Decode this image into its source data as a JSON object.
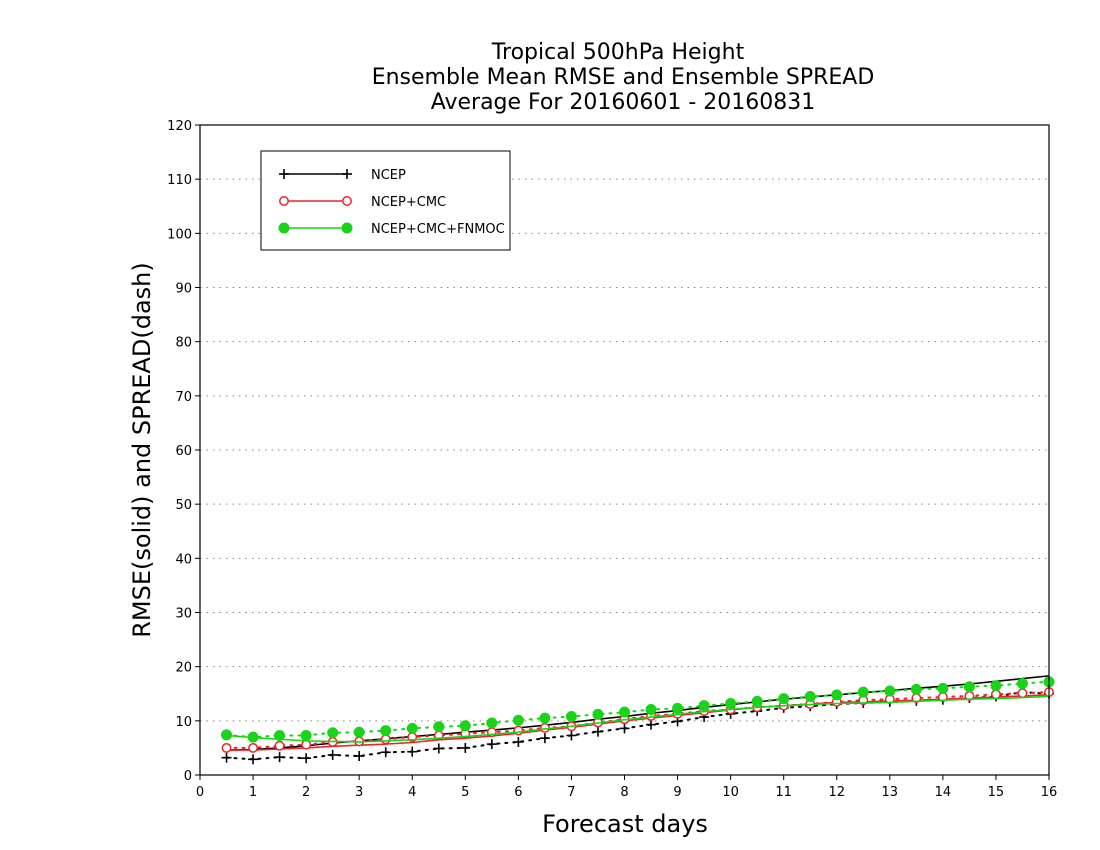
{
  "chart_data": {
    "type": "line",
    "title": [
      "Tropical 500hPa Height",
      "Ensemble Mean RMSE and Ensemble SPREAD",
      "Average For 20160601 - 20160831"
    ],
    "xlabel": "Forecast days",
    "ylabel": "RMSE(solid) and SPREAD(dash)",
    "xlim": [
      0,
      16
    ],
    "ylim": [
      0,
      120
    ],
    "xticks": [
      0,
      1,
      2,
      3,
      4,
      5,
      6,
      7,
      8,
      9,
      10,
      11,
      12,
      13,
      14,
      15,
      16
    ],
    "yticks": [
      0,
      10,
      20,
      30,
      40,
      50,
      60,
      70,
      80,
      90,
      100,
      110,
      120
    ],
    "grid": "horizontal dotted",
    "legend_placement": "top-left",
    "x": [
      0.5,
      1,
      1.5,
      2,
      2.5,
      3,
      3.5,
      4,
      4.5,
      5,
      5.5,
      6,
      6.5,
      7,
      7.5,
      8,
      8.5,
      9,
      9.5,
      10,
      10.5,
      11,
      11.5,
      12,
      12.5,
      13,
      13.5,
      14,
      14.5,
      15,
      15.5,
      16
    ],
    "series": [
      {
        "name": "NCEP",
        "color": "#000000",
        "marker": "plus",
        "rmse": [
          4.6,
          4.7,
          5.0,
          5.4,
          5.9,
          6.3,
          6.7,
          7.1,
          7.5,
          7.9,
          8.3,
          8.7,
          9.2,
          9.7,
          10.3,
          10.8,
          11.4,
          11.9,
          12.5,
          13.0,
          13.5,
          14.0,
          14.4,
          14.8,
          15.2,
          15.6,
          16.0,
          16.4,
          16.8,
          17.3,
          17.8,
          18.3
        ],
        "spread": [
          3.2,
          2.9,
          3.3,
          3.1,
          3.7,
          3.5,
          4.2,
          4.3,
          4.9,
          5.0,
          5.7,
          6.1,
          6.8,
          7.3,
          8.0,
          8.6,
          9.3,
          9.9,
          10.7,
          11.3,
          11.8,
          12.4,
          12.7,
          13.1,
          13.3,
          13.5,
          13.7,
          13.9,
          14.2,
          14.5,
          15.3,
          15.0
        ]
      },
      {
        "name": "NCEP+CMC",
        "color": "#e8252c",
        "marker": "open-circle",
        "rmse": [
          4.6,
          4.6,
          4.8,
          5.0,
          5.3,
          5.5,
          5.7,
          6.0,
          6.5,
          6.8,
          7.2,
          7.7,
          8.3,
          8.8,
          9.4,
          10.0,
          10.5,
          11.0,
          11.5,
          12.0,
          12.5,
          12.8,
          13.1,
          13.4,
          13.5,
          13.7,
          13.8,
          14.0,
          14.2,
          14.4,
          14.6,
          14.8
        ],
        "spread": [
          5.0,
          5.0,
          5.4,
          5.6,
          6.1,
          6.2,
          6.6,
          7.0,
          7.3,
          7.6,
          7.9,
          8.2,
          8.7,
          9.0,
          9.7,
          10.3,
          10.9,
          11.3,
          11.8,
          12.1,
          12.5,
          12.8,
          13.1,
          13.5,
          13.8,
          14.0,
          14.2,
          14.4,
          14.6,
          14.9,
          15.1,
          15.3
        ]
      },
      {
        "name": "NCEP+CMC+FNMOC",
        "color": "#19d419",
        "marker": "filled-circle",
        "rmse": [
          7.3,
          6.9,
          6.6,
          6.3,
          6.2,
          6.1,
          6.3,
          6.5,
          6.8,
          7.1,
          7.5,
          7.9,
          8.5,
          9.0,
          9.6,
          10.2,
          10.7,
          11.2,
          11.7,
          12.1,
          12.5,
          12.8,
          13.0,
          13.2,
          13.3,
          13.4,
          13.6,
          13.8,
          14.0,
          14.1,
          14.3,
          14.5
        ],
        "spread": [
          7.4,
          7.0,
          7.3,
          7.3,
          7.8,
          7.9,
          8.2,
          8.6,
          8.9,
          9.1,
          9.6,
          10.1,
          10.5,
          10.8,
          11.2,
          11.6,
          12.1,
          12.3,
          12.8,
          13.2,
          13.6,
          14.1,
          14.5,
          14.8,
          15.3,
          15.5,
          15.8,
          16.0,
          16.3,
          16.5,
          16.9,
          17.2
        ]
      }
    ]
  }
}
